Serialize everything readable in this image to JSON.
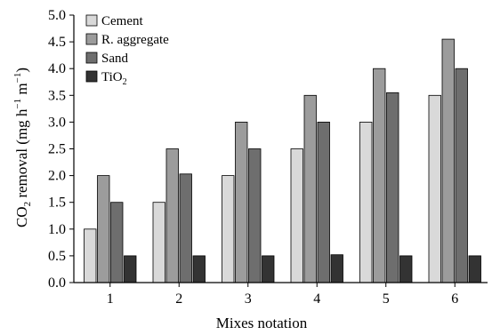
{
  "chart_data": {
    "type": "bar",
    "title": "",
    "xlabel": "Mixes notation",
    "ylabel": {
      "prefix": "CO",
      "sub": "2",
      "mid": " removal (mg h",
      "sup1": "−1",
      "mid2": " m",
      "sup2": "−1",
      "suffix": ")"
    },
    "ylim": [
      0,
      5.0
    ],
    "yticks": [
      "0.0",
      "0.5",
      "1.0",
      "1.5",
      "2.0",
      "2.5",
      "3.0",
      "3.5",
      "4.0",
      "4.5",
      "5.0"
    ],
    "categories": [
      "1",
      "2",
      "3",
      "4",
      "5",
      "6"
    ],
    "series": [
      {
        "name": "Cement",
        "legend_text": "Cement",
        "legend_sub": "",
        "color": "#d9d9d9",
        "values": [
          1.0,
          1.5,
          2.0,
          2.5,
          3.0,
          3.5
        ]
      },
      {
        "name": "R. aggregate",
        "legend_text": "R. aggregate",
        "legend_sub": "",
        "color": "#9c9c9c",
        "values": [
          2.0,
          2.5,
          3.0,
          3.5,
          4.0,
          4.55
        ]
      },
      {
        "name": "Sand",
        "legend_text": "Sand",
        "legend_sub": "",
        "color": "#6e6e6e",
        "values": [
          1.5,
          2.03,
          2.5,
          3.0,
          3.55,
          4.0
        ]
      },
      {
        "name": "TiO2",
        "legend_text": "TiO",
        "legend_sub": "2",
        "color": "#333333",
        "values": [
          0.5,
          0.5,
          0.5,
          0.52,
          0.5,
          0.5
        ]
      }
    ],
    "legend_position": "top-left",
    "grid": false
  }
}
